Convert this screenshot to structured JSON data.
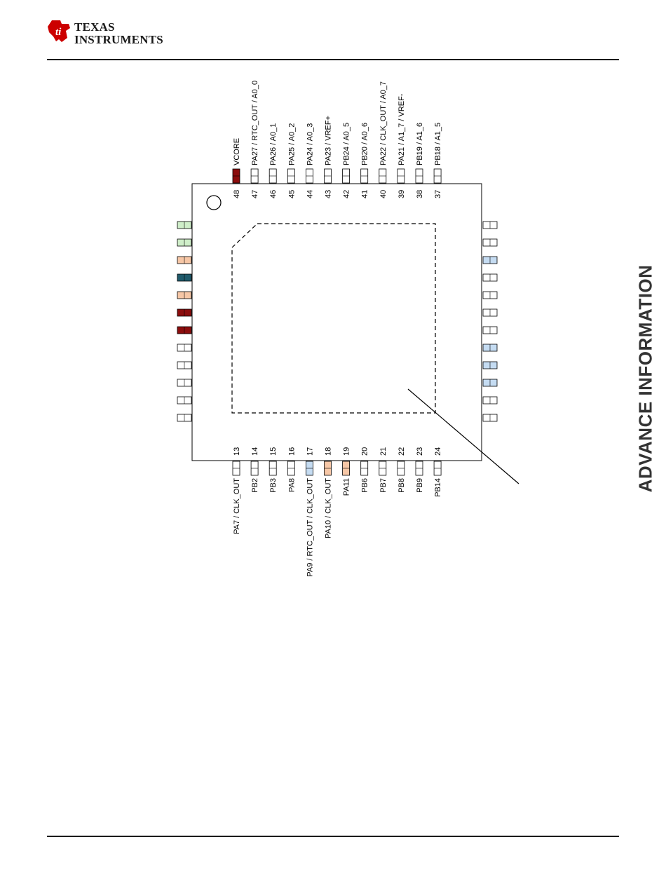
{
  "header": {
    "logo_line1": "Texas",
    "logo_line2": "Instruments",
    "logo_color": "#cc0000"
  },
  "side_banner": "ADVANCE INFORMATION",
  "colors": {
    "white": "#ffffff",
    "dark_red": "#8b0d0d",
    "light_green": "#cfeec9",
    "peach": "#f7c7a6",
    "teal": "#1f5a6b",
    "light_blue": "#c5dcf2"
  },
  "package": {
    "pin1_marker": "circle-icon",
    "top_pins": [
      {
        "number": "48",
        "name": "VCORE",
        "color": "dark_red"
      },
      {
        "number": "47",
        "name": "PA27 / RTC_OUT / A0_0",
        "color": "white"
      },
      {
        "number": "46",
        "name": "PA26 / A0_1",
        "color": "white"
      },
      {
        "number": "45",
        "name": "PA25 / A0_2",
        "color": "white"
      },
      {
        "number": "44",
        "name": "PA24 / A0_3",
        "color": "white"
      },
      {
        "number": "43",
        "name": "PA23 / VREF+",
        "color": "white"
      },
      {
        "number": "42",
        "name": "PB24 / A0_5",
        "color": "white"
      },
      {
        "number": "41",
        "name": "PB20 / A0_6",
        "color": "white"
      },
      {
        "number": "40",
        "name": "PA22 / CLK_OUT / A0_7",
        "color": "white"
      },
      {
        "number": "39",
        "name": "PA21 / A1_7 / VREF-",
        "color": "white"
      },
      {
        "number": "38",
        "name": "PB19 / A1_6",
        "color": "white"
      },
      {
        "number": "37",
        "name": "PB18 / A1_5",
        "color": "white"
      }
    ],
    "bottom_pins": [
      {
        "number": "13",
        "name": "PA7 / CLK_OUT",
        "color": "white"
      },
      {
        "number": "14",
        "name": "PB2",
        "color": "white"
      },
      {
        "number": "15",
        "name": "PB3",
        "color": "white"
      },
      {
        "number": "16",
        "name": "PA8",
        "color": "white"
      },
      {
        "number": "17",
        "name": "PA9 / RTC_OUT / CLK_OUT",
        "color": "light_blue"
      },
      {
        "number": "18",
        "name": "PA10 / CLK_OUT",
        "color": "peach"
      },
      {
        "number": "19",
        "name": "PA11",
        "color": "peach"
      },
      {
        "number": "20",
        "name": "PB6",
        "color": "white"
      },
      {
        "number": "21",
        "name": "PB7",
        "color": "white"
      },
      {
        "number": "22",
        "name": "PB8",
        "color": "white"
      },
      {
        "number": "23",
        "name": "PB9",
        "color": "white"
      },
      {
        "number": "24",
        "name": "PB14",
        "color": "white"
      }
    ],
    "left_pins": [
      {
        "color": "light_green"
      },
      {
        "color": "light_green"
      },
      {
        "color": "peach"
      },
      {
        "color": "teal"
      },
      {
        "color": "peach"
      },
      {
        "color": "dark_red"
      },
      {
        "color": "dark_red"
      },
      {
        "color": "white"
      },
      {
        "color": "white"
      },
      {
        "color": "white"
      },
      {
        "color": "white"
      },
      {
        "color": "white"
      }
    ],
    "right_pins": [
      {
        "color": "white"
      },
      {
        "color": "white"
      },
      {
        "color": "light_blue"
      },
      {
        "color": "white"
      },
      {
        "color": "white"
      },
      {
        "color": "white"
      },
      {
        "color": "white"
      },
      {
        "color": "light_blue"
      },
      {
        "color": "light_blue"
      },
      {
        "color": "light_blue"
      },
      {
        "color": "white"
      },
      {
        "color": "white"
      }
    ]
  }
}
